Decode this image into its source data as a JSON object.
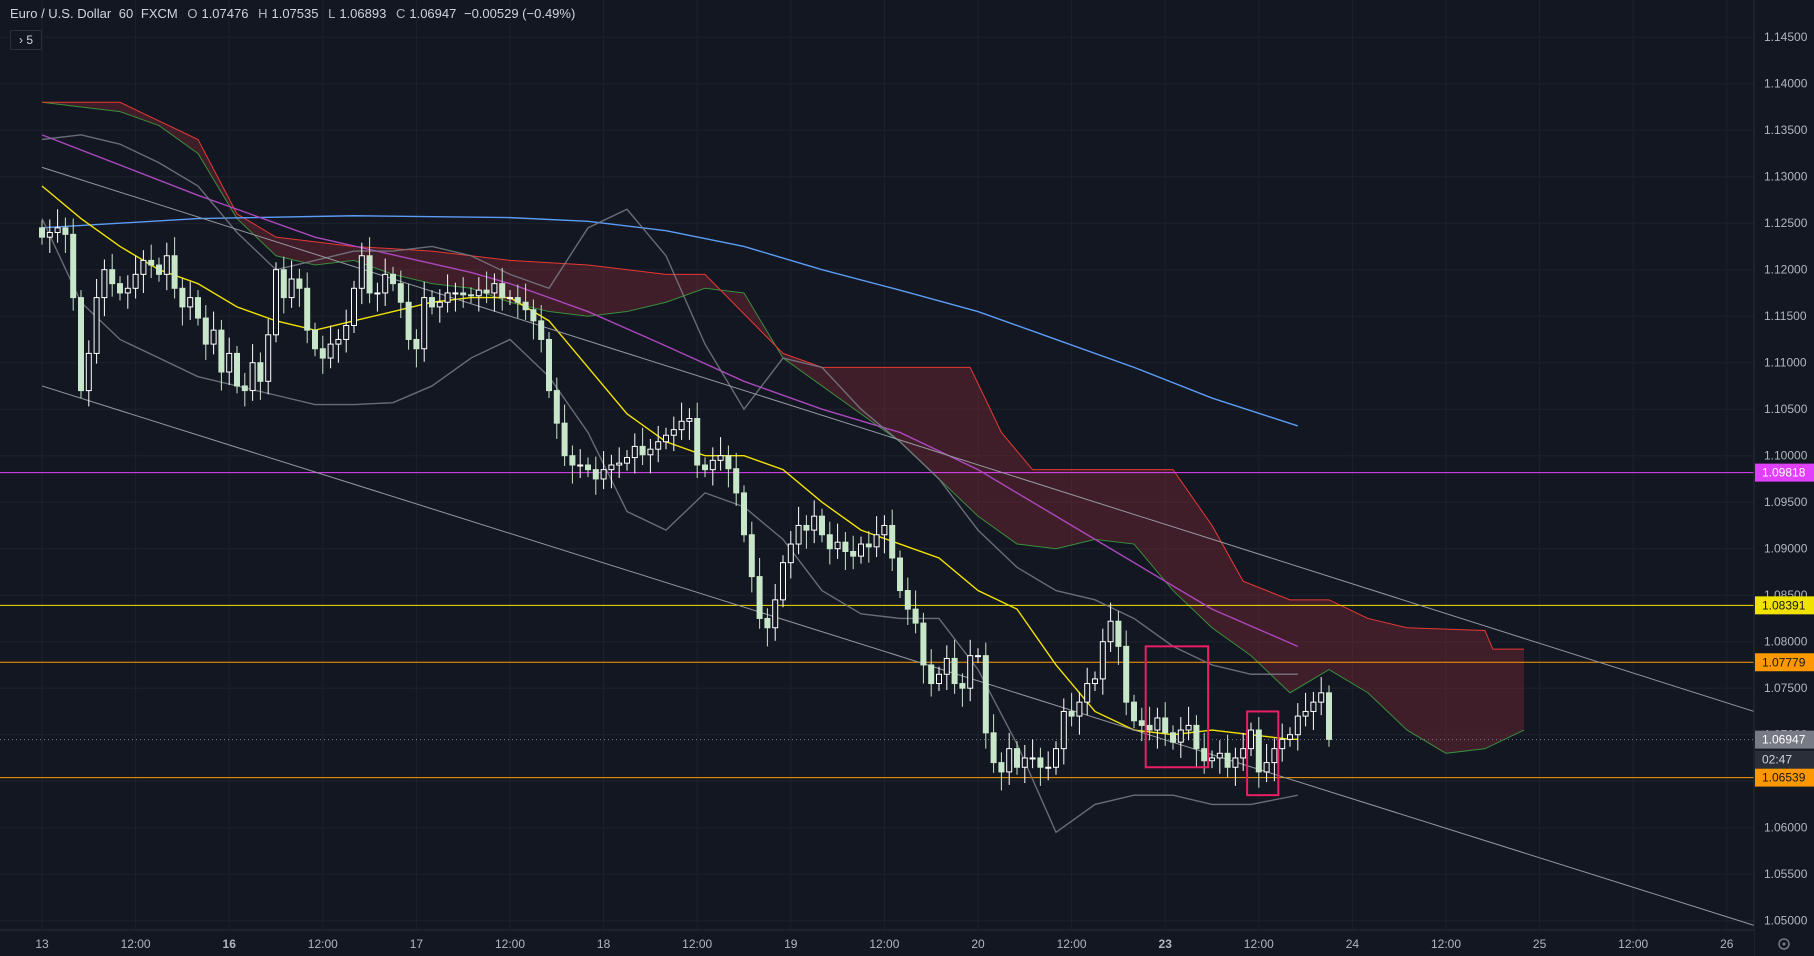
{
  "header": {
    "symbol": "Euro / U.S. Dollar",
    "interval": "60",
    "exchange": "FXCM",
    "open_label": "O",
    "open": "1.07476",
    "high_label": "H",
    "high": "1.07535",
    "low_label": "L",
    "low": "1.06893",
    "close_label": "C",
    "close": "1.06947",
    "change": "−0.00529 (−0.49%)",
    "indicators_toggle": "›  5"
  },
  "chart_data": {
    "type": "candlestick",
    "title": "Euro / U.S. Dollar · 60 · FXCM",
    "y_range": [
      1.049,
      1.149
    ],
    "y_ticks": [
      "1.14500",
      "1.14000",
      "1.13500",
      "1.13000",
      "1.12500",
      "1.12000",
      "1.11500",
      "1.11000",
      "1.10500",
      "1.10000",
      "1.09500",
      "1.09000",
      "1.08500",
      "1.08000",
      "1.07500",
      "1.07000",
      "1.06500",
      "1.06000",
      "1.05500",
      "1.05000"
    ],
    "y_tick_values": [
      1.145,
      1.14,
      1.135,
      1.13,
      1.125,
      1.12,
      1.115,
      1.11,
      1.105,
      1.1,
      1.095,
      1.09,
      1.085,
      1.08,
      1.075,
      1.07,
      1.065,
      1.06,
      1.055,
      1.05
    ],
    "x_ticks": [
      "13",
      "12:00",
      "16",
      "12:00",
      "17",
      "12:00",
      "18",
      "12:00",
      "19",
      "12:00",
      "20",
      "12:00",
      "23",
      "12:00",
      "24",
      "12:00",
      "25",
      "12:00",
      "26"
    ],
    "x_tick_bold": [
      false,
      false,
      true,
      false,
      false,
      false,
      false,
      false,
      false,
      false,
      false,
      false,
      true,
      false,
      false,
      false,
      false,
      false,
      false
    ],
    "x_tick_bars": [
      0,
      12,
      24,
      36,
      48,
      60,
      72,
      84,
      96,
      108,
      120,
      132,
      144,
      156,
      168,
      180,
      192,
      204,
      216
    ],
    "bars_visible": 222,
    "horizontal_levels": [
      {
        "price": 1.09818,
        "label": "1.09818",
        "color": "#e040fb"
      },
      {
        "price": 1.08391,
        "label": "1.08391",
        "color": "#f2e200"
      },
      {
        "price": 1.07779,
        "label": "1.07779",
        "color": "#ff9800"
      },
      {
        "price": 1.06539,
        "label": "1.06539",
        "color": "#ff9800"
      }
    ],
    "last_price": {
      "price": 1.06947,
      "label": "1.06947",
      "countdown": "02:47",
      "color": "#787b86"
    },
    "closes": [
      1.1235,
      1.124,
      1.1245,
      1.1238,
      1.117,
      1.107,
      1.111,
      1.117,
      1.12,
      1.1185,
      1.1175,
      1.118,
      1.1195,
      1.121,
      1.1205,
      1.1195,
      1.1215,
      1.118,
      1.116,
      1.117,
      1.1148,
      1.112,
      1.1135,
      1.109,
      1.111,
      1.1075,
      1.107,
      1.11,
      1.108,
      1.113,
      1.12,
      1.117,
      1.119,
      1.118,
      1.1135,
      1.1115,
      1.1105,
      1.112,
      1.1125,
      1.114,
      1.118,
      1.1215,
      1.1175,
      1.1175,
      1.1195,
      1.1185,
      1.1165,
      1.1125,
      1.1115,
      1.117,
      1.116,
      1.1165,
      1.1175,
      1.1175,
      1.1173,
      1.1172,
      1.1178,
      1.1175,
      1.1185,
      1.117,
      1.117,
      1.1165,
      1.1157,
      1.1145,
      1.1125,
      1.107,
      1.1035,
      1.1,
      1.099,
      1.099,
      1.0985,
      1.0975,
      1.0985,
      1.099,
      1.0992,
      1.0998,
      1.101,
      1.1001,
      1.1007,
      1.1015,
      1.1022,
      1.1028,
      1.1037,
      1.104,
      1.099,
      1.0985,
      1.0995,
      1.1,
      1.0986,
      1.096,
      1.0915,
      1.087,
      1.0825,
      1.0815,
      1.0845,
      1.0885,
      1.0905,
      1.0925,
      1.092,
      1.0935,
      1.0915,
      1.09,
      1.0907,
      1.0897,
      1.0892,
      1.0905,
      1.0902,
      1.0915,
      1.0925,
      1.089,
      1.0855,
      1.0835,
      1.082,
      1.0775,
      1.0755,
      1.0765,
      1.0782,
      1.0755,
      1.075,
      1.0785,
      1.0785,
      1.0702,
      1.067,
      1.066,
      1.0685,
      1.0665,
      1.0675,
      1.0675,
      1.0665,
      1.0665,
      1.0685,
      1.0725,
      1.072,
      1.0735,
      1.0755,
      1.076,
      1.08,
      1.0822,
      1.0795,
      1.0735,
      1.0715,
      1.071,
      1.0705,
      1.0718,
      1.0702,
      1.0692,
      1.0705,
      1.071,
      1.0685,
      1.0672,
      1.0675,
      1.068,
      1.0665,
      1.0675,
      1.0685,
      1.0705,
      1.066,
      1.067,
      1.0685,
      1.0695,
      1.07,
      1.072,
      1.0725,
      1.0735,
      1.0745,
      1.0695
    ],
    "series": [
      {
        "name": "",
        "kind": "ma-slow",
        "color": "#5b9cf6",
        "points": [
          [
            0,
            1.1245
          ],
          [
            20,
            1.1255
          ],
          [
            40,
            1.1258
          ],
          [
            60,
            1.1256
          ],
          [
            70,
            1.1252
          ],
          [
            80,
            1.1242
          ],
          [
            90,
            1.1225
          ],
          [
            100,
            1.12
          ],
          [
            110,
            1.1178
          ],
          [
            120,
            1.1155
          ],
          [
            130,
            1.1125
          ],
          [
            140,
            1.1095
          ],
          [
            150,
            1.1062
          ],
          [
            161,
            1.1032
          ]
        ]
      },
      {
        "name": "",
        "kind": "ma-mid",
        "color": "#ab47bc",
        "points": [
          [
            0,
            1.1345
          ],
          [
            20,
            1.128
          ],
          [
            35,
            1.1235
          ],
          [
            55,
            1.1197
          ],
          [
            60,
            1.1185
          ],
          [
            70,
            1.1155
          ],
          [
            80,
            1.1118
          ],
          [
            90,
            1.108
          ],
          [
            100,
            1.105
          ],
          [
            110,
            1.1025
          ],
          [
            120,
            1.0985
          ],
          [
            130,
            1.0935
          ],
          [
            140,
            1.0885
          ],
          [
            150,
            1.0835
          ],
          [
            161,
            1.0795
          ]
        ]
      },
      {
        "name": "",
        "kind": "ma-fast",
        "color": "#f2e200",
        "points": [
          [
            0,
            1.129
          ],
          [
            5,
            1.1255
          ],
          [
            10,
            1.1225
          ],
          [
            15,
            1.12
          ],
          [
            20,
            1.1185
          ],
          [
            25,
            1.116
          ],
          [
            30,
            1.1145
          ],
          [
            35,
            1.1135
          ],
          [
            40,
            1.1145
          ],
          [
            45,
            1.1155
          ],
          [
            50,
            1.1165
          ],
          [
            55,
            1.117
          ],
          [
            60,
            1.117
          ],
          [
            65,
            1.1145
          ],
          [
            70,
            1.1095
          ],
          [
            75,
            1.1045
          ],
          [
            80,
            1.1015
          ],
          [
            85,
            1.1
          ],
          [
            90,
            1.1
          ],
          [
            95,
            1.0985
          ],
          [
            100,
            1.095
          ],
          [
            105,
            1.092
          ],
          [
            110,
            1.0905
          ],
          [
            115,
            1.089
          ],
          [
            120,
            1.0855
          ],
          [
            125,
            1.0835
          ],
          [
            130,
            1.0775
          ],
          [
            135,
            1.0725
          ],
          [
            140,
            1.0705
          ],
          [
            145,
            1.07
          ],
          [
            150,
            1.0705
          ],
          [
            155,
            1.07
          ],
          [
            160,
            1.0695
          ],
          [
            161,
            1.0695
          ]
        ]
      },
      {
        "name": "",
        "kind": "bb-upper",
        "color": "#787b86",
        "points": [
          [
            0,
            1.134
          ],
          [
            5,
            1.1345
          ],
          [
            10,
            1.1335
          ],
          [
            15,
            1.1315
          ],
          [
            20,
            1.129
          ],
          [
            25,
            1.124
          ],
          [
            30,
            1.12
          ],
          [
            35,
            1.121
          ],
          [
            40,
            1.122
          ],
          [
            45,
            1.122
          ],
          [
            50,
            1.1225
          ],
          [
            55,
            1.1215
          ],
          [
            60,
            1.1195
          ],
          [
            65,
            1.118
          ],
          [
            70,
            1.1245
          ],
          [
            75,
            1.1265
          ],
          [
            80,
            1.1215
          ],
          [
            85,
            1.112
          ],
          [
            90,
            1.105
          ],
          [
            95,
            1.1105
          ],
          [
            100,
            1.1095
          ],
          [
            105,
            1.105
          ],
          [
            110,
            1.1015
          ],
          [
            115,
            1.0975
          ],
          [
            120,
            1.092
          ],
          [
            125,
            1.088
          ],
          [
            130,
            1.0855
          ],
          [
            135,
            1.0845
          ],
          [
            140,
            1.0825
          ],
          [
            145,
            1.0795
          ],
          [
            150,
            1.0775
          ],
          [
            155,
            1.0765
          ],
          [
            161,
            1.0765
          ]
        ]
      },
      {
        "name": "",
        "kind": "bb-lower",
        "color": "#787b86",
        "points": [
          [
            0,
            1.1255
          ],
          [
            5,
            1.1165
          ],
          [
            10,
            1.1125
          ],
          [
            15,
            1.1105
          ],
          [
            20,
            1.1085
          ],
          [
            25,
            1.1075
          ],
          [
            30,
            1.1065
          ],
          [
            35,
            1.1055
          ],
          [
            40,
            1.1055
          ],
          [
            45,
            1.1057
          ],
          [
            50,
            1.1075
          ],
          [
            55,
            1.1105
          ],
          [
            60,
            1.1125
          ],
          [
            65,
            1.1085
          ],
          [
            70,
            1.1025
          ],
          [
            75,
            1.094
          ],
          [
            80,
            1.092
          ],
          [
            85,
            1.096
          ],
          [
            90,
            1.0945
          ],
          [
            95,
            1.091
          ],
          [
            100,
            1.0855
          ],
          [
            105,
            1.083
          ],
          [
            110,
            1.0825
          ],
          [
            115,
            1.0825
          ],
          [
            120,
            1.077
          ],
          [
            125,
            1.069
          ],
          [
            130,
            1.0595
          ],
          [
            135,
            1.0625
          ],
          [
            140,
            1.0635
          ],
          [
            145,
            1.0635
          ],
          [
            150,
            1.0625
          ],
          [
            155,
            1.0625
          ],
          [
            161,
            1.0635
          ]
        ]
      },
      {
        "name": "",
        "kind": "channel-upper",
        "color": "#9598a1",
        "points": [
          [
            0,
            1.131
          ],
          [
            222,
            1.0725
          ]
        ]
      },
      {
        "name": "",
        "kind": "channel-lower",
        "color": "#9598a1",
        "points": [
          [
            0,
            1.1075
          ],
          [
            222,
            1.0495
          ]
        ]
      }
    ],
    "cloud": {
      "span_a": [
        [
          0,
          1.138
        ],
        [
          5,
          1.1375
        ],
        [
          10,
          1.137
        ],
        [
          15,
          1.1355
        ],
        [
          20,
          1.1325
        ],
        [
          25,
          1.1255
        ],
        [
          30,
          1.1215
        ],
        [
          35,
          1.1205
        ],
        [
          40,
          1.121
        ],
        [
          45,
          1.1195
        ],
        [
          50,
          1.1185
        ],
        [
          55,
          1.118
        ],
        [
          60,
          1.1165
        ],
        [
          65,
          1.1155
        ],
        [
          70,
          1.115
        ],
        [
          75,
          1.1155
        ],
        [
          80,
          1.1165
        ],
        [
          85,
          1.118
        ],
        [
          90,
          1.1175
        ],
        [
          95,
          1.1105
        ],
        [
          100,
          1.1075
        ],
        [
          105,
          1.1045
        ],
        [
          110,
          1.1015
        ],
        [
          115,
          1.0975
        ],
        [
          120,
          1.0935
        ],
        [
          125,
          1.0905
        ],
        [
          130,
          1.09
        ],
        [
          135,
          1.091
        ],
        [
          140,
          1.0905
        ],
        [
          145,
          1.0855
        ],
        [
          150,
          1.0815
        ],
        [
          155,
          1.0785
        ],
        [
          160,
          1.0745
        ],
        [
          165,
          1.077
        ],
        [
          170,
          1.0745
        ],
        [
          175,
          1.0705
        ],
        [
          180,
          1.068
        ],
        [
          185,
          1.0685
        ],
        [
          190,
          1.0705
        ]
      ],
      "span_b": [
        [
          0,
          1.138
        ],
        [
          10,
          1.138
        ],
        [
          15,
          1.136
        ],
        [
          20,
          1.134
        ],
        [
          25,
          1.126
        ],
        [
          30,
          1.1235
        ],
        [
          40,
          1.1225
        ],
        [
          50,
          1.122
        ],
        [
          60,
          1.121
        ],
        [
          70,
          1.1205
        ],
        [
          80,
          1.1195
        ],
        [
          85,
          1.1195
        ],
        [
          95,
          1.111
        ],
        [
          100,
          1.1095
        ],
        [
          110,
          1.1095
        ],
        [
          119,
          1.1095
        ],
        [
          123,
          1.1025
        ],
        [
          127,
          1.0985
        ],
        [
          140,
          1.0985
        ],
        [
          145,
          1.0985
        ],
        [
          150,
          1.0925
        ],
        [
          154,
          1.0865
        ],
        [
          160,
          1.0845
        ],
        [
          165,
          1.0845
        ],
        [
          170,
          1.0825
        ],
        [
          175,
          1.0815
        ],
        [
          185,
          1.0812
        ],
        [
          186,
          1.0792
        ],
        [
          190,
          1.0792
        ]
      ]
    },
    "annotations": [
      {
        "kind": "rectangle",
        "x1": 141.5,
        "x2": 149.5,
        "y1": 1.0795,
        "y2": 1.0665,
        "color": "#e91e63"
      },
      {
        "kind": "rectangle",
        "x1": 154.5,
        "x2": 158.5,
        "y1": 1.0725,
        "y2": 1.0635,
        "color": "#e91e63"
      }
    ]
  },
  "price_axis": {
    "settings_icon": "gear-icon"
  }
}
